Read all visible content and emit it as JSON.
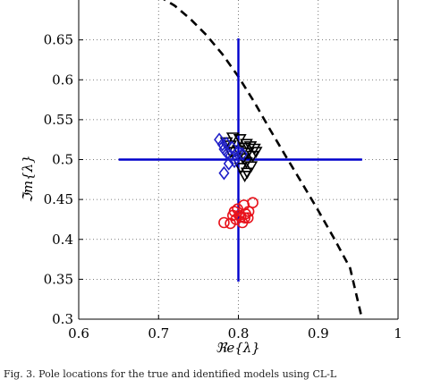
{
  "chart_data": {
    "type": "scatter",
    "xlabel": "ℜe{λ}",
    "ylabel": "ℑm{λ}",
    "xlim": [
      0.6,
      1.0
    ],
    "ylim": [
      0.3,
      0.7
    ],
    "x_ticks": [
      "0.6",
      "0.7",
      "0.8",
      "0.9",
      "1"
    ],
    "y_ticks": [
      "0.3",
      "0.35",
      "0.4",
      "0.45",
      "0.5",
      "0.55",
      "0.6",
      "0.65"
    ],
    "grid": true,
    "series": [
      {
        "marker": "triangle-down",
        "color": "#000000",
        "points": [
          [
            0.793,
            0.528
          ],
          [
            0.802,
            0.526
          ],
          [
            0.81,
            0.52
          ],
          [
            0.808,
            0.515
          ],
          [
            0.815,
            0.517
          ],
          [
            0.82,
            0.514
          ],
          [
            0.79,
            0.51
          ],
          [
            0.8,
            0.512
          ],
          [
            0.812,
            0.509
          ],
          [
            0.818,
            0.505
          ],
          [
            0.806,
            0.502
          ],
          [
            0.798,
            0.5
          ],
          [
            0.81,
            0.497
          ],
          [
            0.816,
            0.492
          ],
          [
            0.803,
            0.49
          ],
          [
            0.811,
            0.484
          ],
          [
            0.808,
            0.48
          ],
          [
            0.79,
            0.518
          ],
          [
            0.785,
            0.522
          ],
          [
            0.822,
            0.51
          ]
        ]
      },
      {
        "marker": "diamond",
        "color": "#1f1fc8",
        "points": [
          [
            0.776,
            0.525
          ],
          [
            0.785,
            0.52
          ],
          [
            0.782,
            0.513
          ],
          [
            0.79,
            0.505
          ],
          [
            0.795,
            0.498
          ],
          [
            0.798,
            0.502
          ],
          [
            0.788,
            0.495
          ],
          [
            0.782,
            0.483
          ],
          [
            0.8,
            0.51
          ],
          [
            0.805,
            0.507
          ],
          [
            0.792,
            0.515
          ],
          [
            0.78,
            0.519
          ],
          [
            0.786,
            0.508
          ]
        ]
      },
      {
        "marker": "circle",
        "color": "#e8121b",
        "points": [
          [
            0.79,
            0.42
          ],
          [
            0.797,
            0.425
          ],
          [
            0.803,
            0.428
          ],
          [
            0.809,
            0.432
          ],
          [
            0.813,
            0.435
          ],
          [
            0.818,
            0.446
          ],
          [
            0.807,
            0.443
          ],
          [
            0.795,
            0.435
          ],
          [
            0.801,
            0.43
          ],
          [
            0.805,
            0.421
          ],
          [
            0.812,
            0.427
          ],
          [
            0.799,
            0.438
          ],
          [
            0.808,
            0.427
          ],
          [
            0.782,
            0.421
          ],
          [
            0.793,
            0.43
          ]
        ]
      }
    ],
    "crosshair": {
      "color": "#0000cc",
      "center": [
        0.8,
        0.5
      ],
      "x_range": [
        0.65,
        0.955
      ],
      "y_range": [
        0.347,
        0.652
      ]
    },
    "boundary_curve": {
      "style": "dashed",
      "color": "#000000",
      "points": [
        [
          0.7,
          0.705
        ],
        [
          0.72,
          0.693
        ],
        [
          0.74,
          0.676
        ],
        [
          0.76,
          0.656
        ],
        [
          0.78,
          0.632
        ],
        [
          0.8,
          0.604
        ],
        [
          0.82,
          0.572
        ],
        [
          0.84,
          0.537
        ],
        [
          0.86,
          0.503
        ],
        [
          0.88,
          0.47
        ],
        [
          0.9,
          0.436
        ],
        [
          0.92,
          0.401
        ],
        [
          0.94,
          0.364
        ],
        [
          0.955,
          0.3
        ]
      ]
    }
  },
  "caption": "Fig. 3.  Pole locations for the true and identified models using CL-L"
}
